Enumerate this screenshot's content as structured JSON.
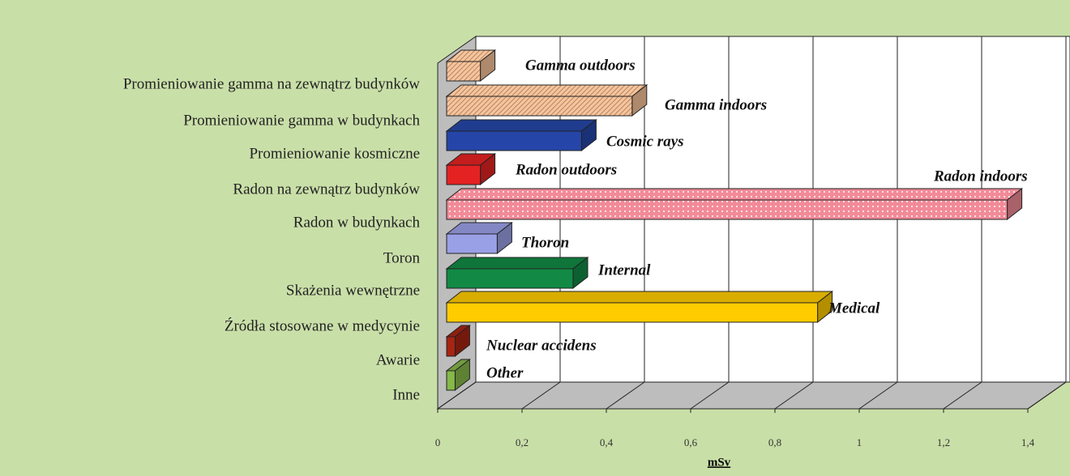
{
  "chart_data": {
    "type": "bar3d_horizontal",
    "categories": [
      "Promieniowanie gamma na zewnątrz budynków",
      "Promieniowanie gamma w budynkach",
      "Promieniowanie kosmiczne",
      "Radon na zewnątrz budynków",
      "Radon w budynkach",
      "Toron",
      "Skażenia wewnętrzne",
      "Źródła stosowane w medycynie",
      "Awarie",
      "Inne"
    ],
    "annotations": [
      "Gamma outdoors",
      "Gamma indoors",
      "Cosmic rays",
      "Radon outdoors",
      "Radon indoors",
      "Thoron",
      "Internal",
      "Medical",
      "Nuclear accidens",
      "Other"
    ],
    "values": [
      0.08,
      0.44,
      0.32,
      0.08,
      1.33,
      0.12,
      0.3,
      0.88,
      0.02,
      0.02
    ],
    "colors": [
      "#f9c49a",
      "#f9c49a",
      "#2546a8",
      "#e52222",
      "#f28a98",
      "#9aa0e6",
      "#128a45",
      "#ffcc00",
      "#a82412",
      "#86b84a"
    ],
    "patterns": [
      "hatch",
      "hatch",
      "solid",
      "solid",
      "dots",
      "solid",
      "solid",
      "solid",
      "solid",
      "solid"
    ],
    "x_label": "mSv",
    "xlim": [
      0,
      1.4
    ],
    "xticks": [
      0,
      {
        "value": 0.2,
        "label": "0,2"
      },
      {
        "value": 0.4,
        "label": "0,4"
      },
      {
        "value": 0.6,
        "label": "0,6"
      },
      {
        "value": 0.8,
        "label": "0,8"
      },
      1,
      {
        "value": 1.2,
        "label": "1,2"
      },
      {
        "value": 1.4,
        "label": "1,4"
      }
    ],
    "grid": true
  }
}
